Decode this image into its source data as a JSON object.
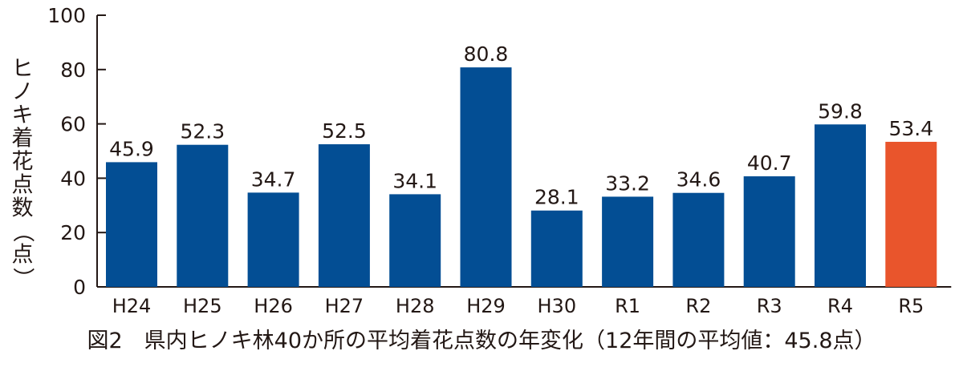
{
  "chart_data": {
    "type": "bar",
    "title": "図2　県内ヒノキ林40か所の平均着花点数の年変化（12年間の平均値：45.8点）",
    "ylabel": "ヒノキ着花点数（点）",
    "xlabel": "",
    "categories": [
      "H24",
      "H25",
      "H26",
      "H27",
      "H28",
      "H29",
      "H30",
      "R1",
      "R2",
      "R3",
      "R4",
      "R5"
    ],
    "values": [
      45.9,
      52.3,
      34.7,
      52.5,
      34.1,
      80.8,
      28.1,
      33.2,
      34.6,
      40.7,
      59.8,
      53.4
    ],
    "value_labels": [
      "45.9",
      "52.3",
      "34.7",
      "52.5",
      "34.1",
      "80.8",
      "28.1",
      "33.2",
      "34.6",
      "40.7",
      "59.8",
      "53.4"
    ],
    "ylim": [
      0,
      100
    ],
    "yticks": [
      0,
      20,
      40,
      60,
      80,
      100
    ],
    "grid": false,
    "legend": "none",
    "colors": {
      "bar": "#034e94",
      "highlight_bar": "#e9552c",
      "axis": "#231815",
      "text": "#231815"
    },
    "highlight_category": "R5"
  }
}
